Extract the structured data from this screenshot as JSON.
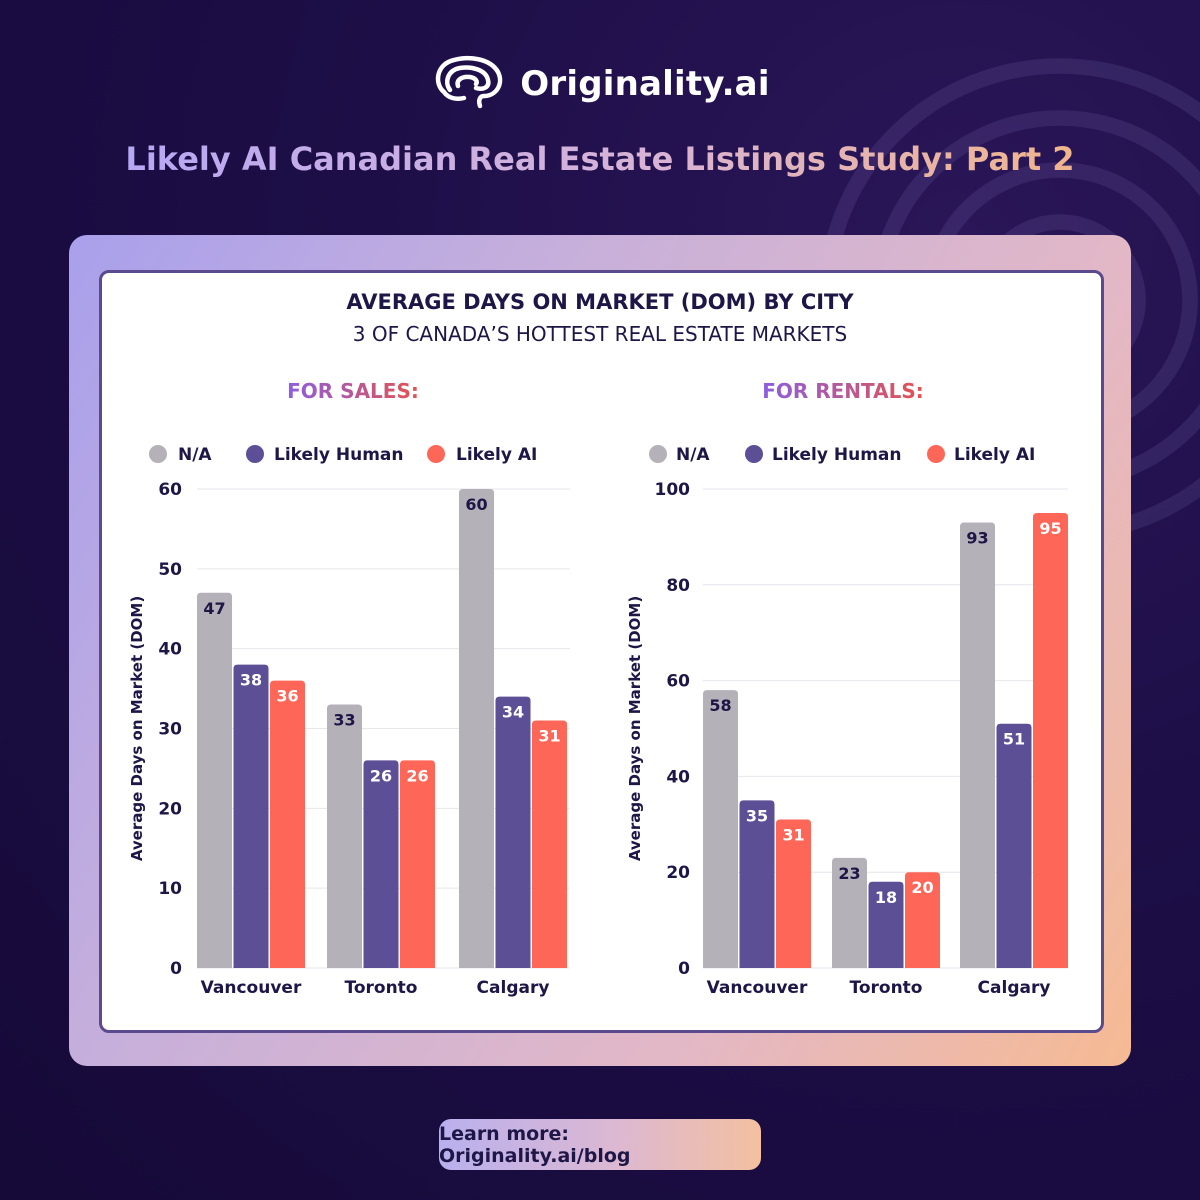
{
  "brand": {
    "name": "Originality.ai"
  },
  "study_title": "Likely AI Canadian Real Estate Listings Study: Part 2",
  "chart_title": "AVERAGE DAYS ON MARKET (DOM) BY CITY",
  "chart_subtitle": "3 OF CANADA’S HOTTEST REAL ESTATE MARKETS",
  "cta_text": "Learn more: Originality.ai/blog",
  "colors": {
    "na": "#b5b1b8",
    "human": "#5c4f96",
    "ai": "#fe6657",
    "title_gradient_start": "#8c5ee0",
    "title_gradient_end": "#e4524f"
  },
  "chart_data": [
    {
      "type": "bar",
      "title": "FOR SALES:",
      "ylabel": "Average Days on Market (DOM)",
      "categories": [
        "Vancouver",
        "Toronto",
        "Calgary"
      ],
      "series": [
        {
          "name": "N/A",
          "values": [
            47,
            33,
            60
          ]
        },
        {
          "name": "Likely Human",
          "values": [
            38,
            26,
            34
          ]
        },
        {
          "name": "Likely AI",
          "values": [
            36,
            26,
            31
          ]
        }
      ],
      "ylim": [
        0,
        60
      ],
      "yticks": [
        0,
        10,
        20,
        30,
        40,
        50,
        60
      ],
      "grid": true,
      "legend": "top"
    },
    {
      "type": "bar",
      "title": "FOR RENTALS:",
      "ylabel": "Average Days on Market (DOM)",
      "categories": [
        "Vancouver",
        "Toronto",
        "Calgary"
      ],
      "series": [
        {
          "name": "N/A",
          "values": [
            58,
            23,
            93
          ]
        },
        {
          "name": "Likely Human",
          "values": [
            35,
            18,
            51
          ]
        },
        {
          "name": "Likely AI",
          "values": [
            31,
            20,
            95
          ]
        }
      ],
      "ylim": [
        0,
        100
      ],
      "yticks": [
        0,
        20,
        40,
        60,
        80,
        100
      ],
      "grid": true,
      "legend": "top"
    }
  ]
}
